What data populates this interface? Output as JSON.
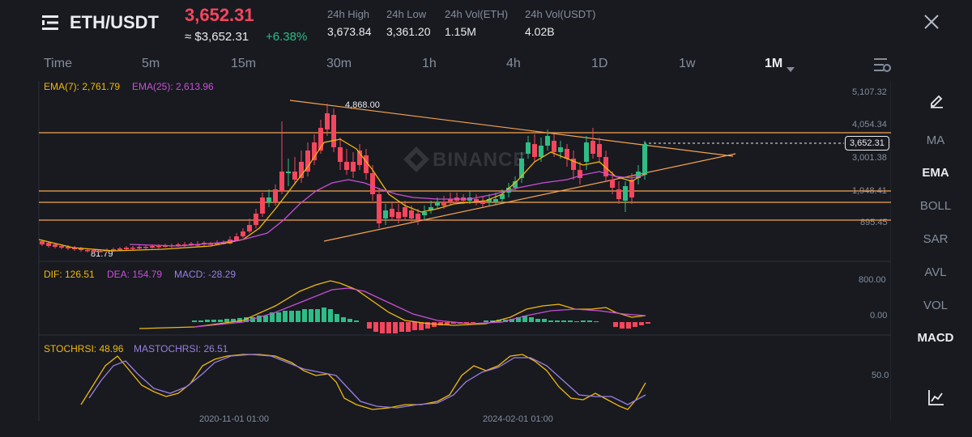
{
  "header": {
    "pair": "ETH/USDT",
    "last_price": "3,652.31",
    "approx_price": "≈ $3,652.31",
    "change_pct": "+6.38%",
    "stats": [
      {
        "label": "24h High",
        "value": "3,673.84"
      },
      {
        "label": "24h Low",
        "value": "3,361.20"
      },
      {
        "label": "24h Vol(ETH)",
        "value": "1.15M"
      },
      {
        "label": "24h Vol(USDT)",
        "value": "4.02B"
      }
    ]
  },
  "timeframes": [
    "Time",
    "5m",
    "15m",
    "30m",
    "1h",
    "4h",
    "1D",
    "1w",
    "1M"
  ],
  "active_timeframe": "1M",
  "main_chart": {
    "ema7_label": "EMA(7): 2,761.79",
    "ema25_label": "EMA(25): 2,613.96",
    "high_annotation": "4,868.00",
    "low_annotation": "81.79",
    "price_tag": "3,652.31",
    "axis_labels": [
      "5,107.32",
      "4,054.34",
      "3,001.38",
      "1,948.41",
      "895.45"
    ],
    "watermark": "BINANCE"
  },
  "macd": {
    "dif_label": "DIF: 126.51",
    "dea_label": "DEA: 154.79",
    "macd_label": "MACD: -28.29",
    "axis_labels": [
      "800.00",
      "0.00"
    ]
  },
  "stochrsi": {
    "stoch_label": "STOCHRSI: 48.96",
    "ma_label": "MASTOCHRSI: 26.51",
    "axis_labels": [
      "50.0"
    ]
  },
  "x_axis_labels": [
    "2020-11-01 01:00",
    "2024-02-01 01:00"
  ],
  "indicators": [
    "MA",
    "EMA",
    "BOLL",
    "SAR",
    "AVL",
    "VOL",
    "MACD"
  ],
  "active_indicators": [
    "EMA",
    "MACD"
  ],
  "colors": {
    "up": "#2ebd85",
    "down": "#f6465d",
    "ema7": "#f0b90b",
    "ema25": "#c94fd6",
    "trendline": "#f7a350",
    "dea": "#c94fd6",
    "stoch_ma": "#9b7fe0",
    "background": "#181a20"
  },
  "icons": {
    "menu": "menu-icon",
    "close": "close-icon",
    "settings": "chart-settings-icon",
    "draw": "pencil-icon",
    "indicator": "line-chart-icon",
    "dropdown": "caret-down-icon"
  }
}
